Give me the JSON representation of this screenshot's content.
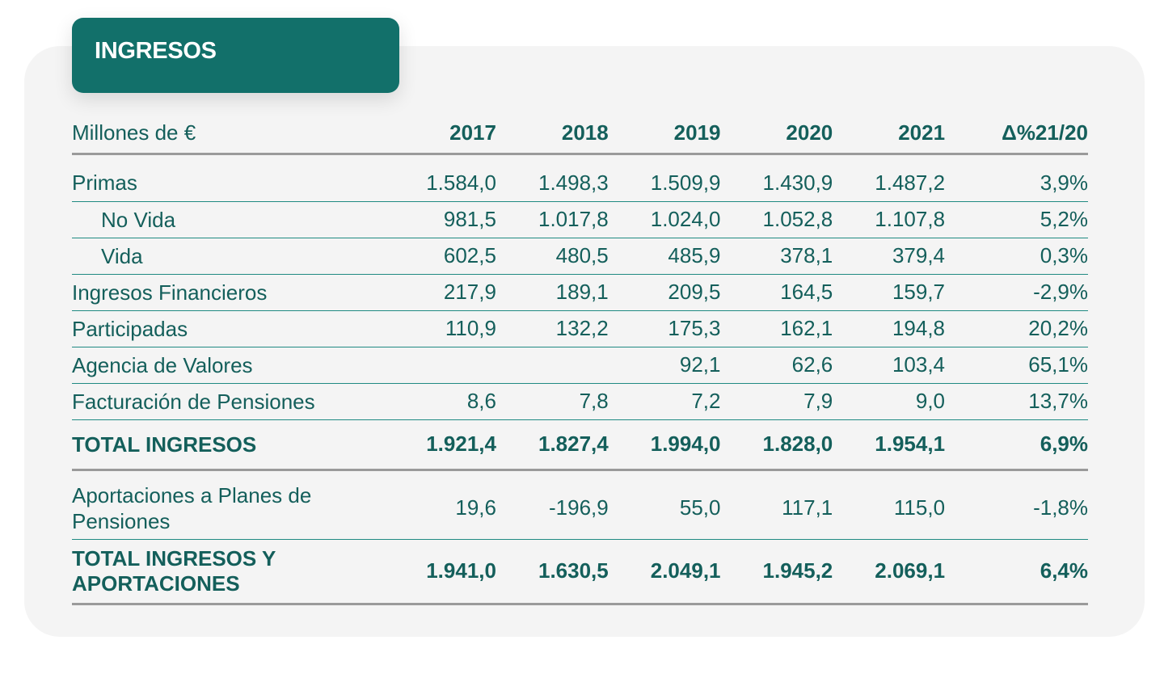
{
  "title": "INGRESOS",
  "columns": [
    "Millones de €",
    "2017",
    "2018",
    "2019",
    "2020",
    "2021",
    "Δ%21/20"
  ],
  "rows": [
    {
      "label": "Primas",
      "values": [
        "1.584,0",
        "1.498,3",
        "1.509,9",
        "1.430,9",
        "1.487,2",
        "3,9%"
      ]
    },
    {
      "label": "No Vida",
      "values": [
        "981,5",
        "1.017,8",
        "1.024,0",
        "1.052,8",
        "1.107,8",
        "5,2%"
      ]
    },
    {
      "label": "Vida",
      "values": [
        "602,5",
        "480,5",
        "485,9",
        "378,1",
        "379,4",
        "0,3%"
      ]
    },
    {
      "label": "Ingresos Financieros",
      "values": [
        "217,9",
        "189,1",
        "209,5",
        "164,5",
        "159,7",
        "-2,9%"
      ]
    },
    {
      "label": "Participadas",
      "values": [
        "110,9",
        "132,2",
        "175,3",
        "162,1",
        "194,8",
        "20,2%"
      ]
    },
    {
      "label": "Agencia de Valores",
      "values": [
        "",
        "",
        "92,1",
        "62,6",
        "103,4",
        "65,1%"
      ]
    },
    {
      "label": "Facturación de Pensiones",
      "values": [
        "8,6",
        "7,8",
        "7,2",
        "7,9",
        "9,0",
        "13,7%"
      ]
    }
  ],
  "total": {
    "label": "TOTAL INGRESOS",
    "values": [
      "1.921,4",
      "1.827,4",
      "1.994,0",
      "1.828,0",
      "1.954,1",
      "6,9%"
    ]
  },
  "aportaciones": {
    "label": "Aportaciones a Planes de Pensiones",
    "values": [
      "19,6",
      "-196,9",
      "55,0",
      "117,1",
      "115,0",
      "-1,8%"
    ]
  },
  "total_aportaciones": {
    "label": "TOTAL INGRESOS Y APORTACIONES",
    "values": [
      "1.941,0",
      "1.630,5",
      "2.049,1",
      "1.945,2",
      "2.069,1",
      "6,4%"
    ]
  },
  "colors": {
    "accent": "#12706a",
    "text": "#145f5b",
    "card": "#f4f4f4",
    "rule": "#9a9a9a"
  }
}
